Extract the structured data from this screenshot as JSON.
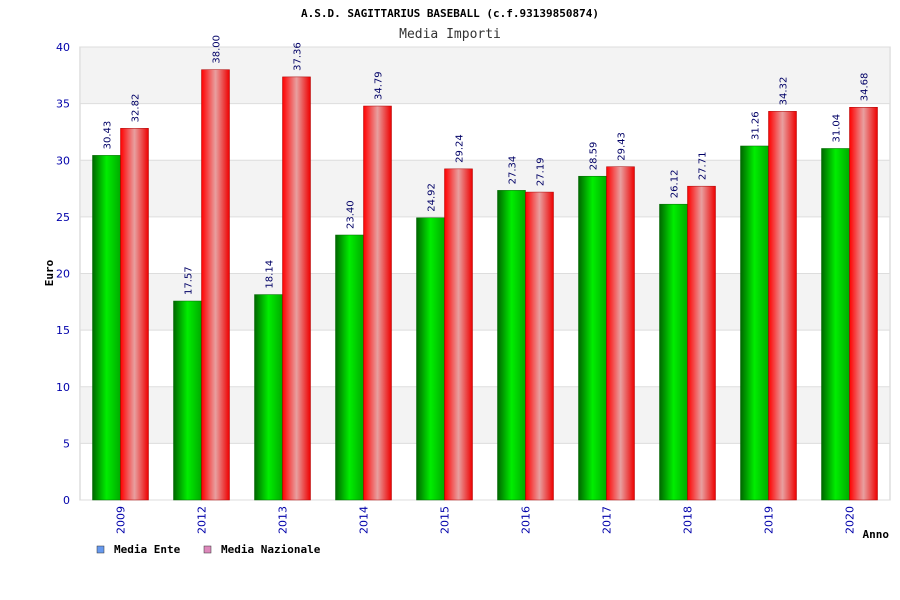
{
  "chart_data": {
    "type": "bar",
    "title": "A.S.D. SAGITTARIUS BASEBALL (c.f.93139850874)",
    "subtitle": "Media Importi",
    "xlabel": "Anno",
    "ylabel": "Euro",
    "ylim": [
      0,
      40
    ],
    "yticks": [
      0,
      5,
      10,
      15,
      20,
      25,
      30,
      35,
      40
    ],
    "grid": true,
    "legend_position": "bottom-left",
    "categories": [
      "2009",
      "2012",
      "2013",
      "2014",
      "2015",
      "2016",
      "2017",
      "2018",
      "2019",
      "2020"
    ],
    "series": [
      {
        "name": "Media Ente",
        "values": [
          30.43,
          17.57,
          18.14,
          23.4,
          24.92,
          27.34,
          28.59,
          26.12,
          31.26,
          31.04
        ],
        "labels": [
          "30.43",
          "17.57",
          "18.14",
          "23.40",
          "24.92",
          "27.34",
          "28.59",
          "26.12",
          "31.26",
          "31.04"
        ],
        "color": "#00aa00",
        "legend_color": "#6699ee"
      },
      {
        "name": "Media Nazionale",
        "values": [
          32.82,
          38.0,
          37.36,
          34.79,
          29.24,
          27.19,
          29.43,
          27.71,
          34.32,
          34.68
        ],
        "labels": [
          "32.82",
          "38.00",
          "37.36",
          "34.79",
          "29.24",
          "27.19",
          "29.43",
          "27.71",
          "34.32",
          "34.68"
        ],
        "color": "#ee0000",
        "legend_color": "#dd88bb"
      }
    ]
  }
}
